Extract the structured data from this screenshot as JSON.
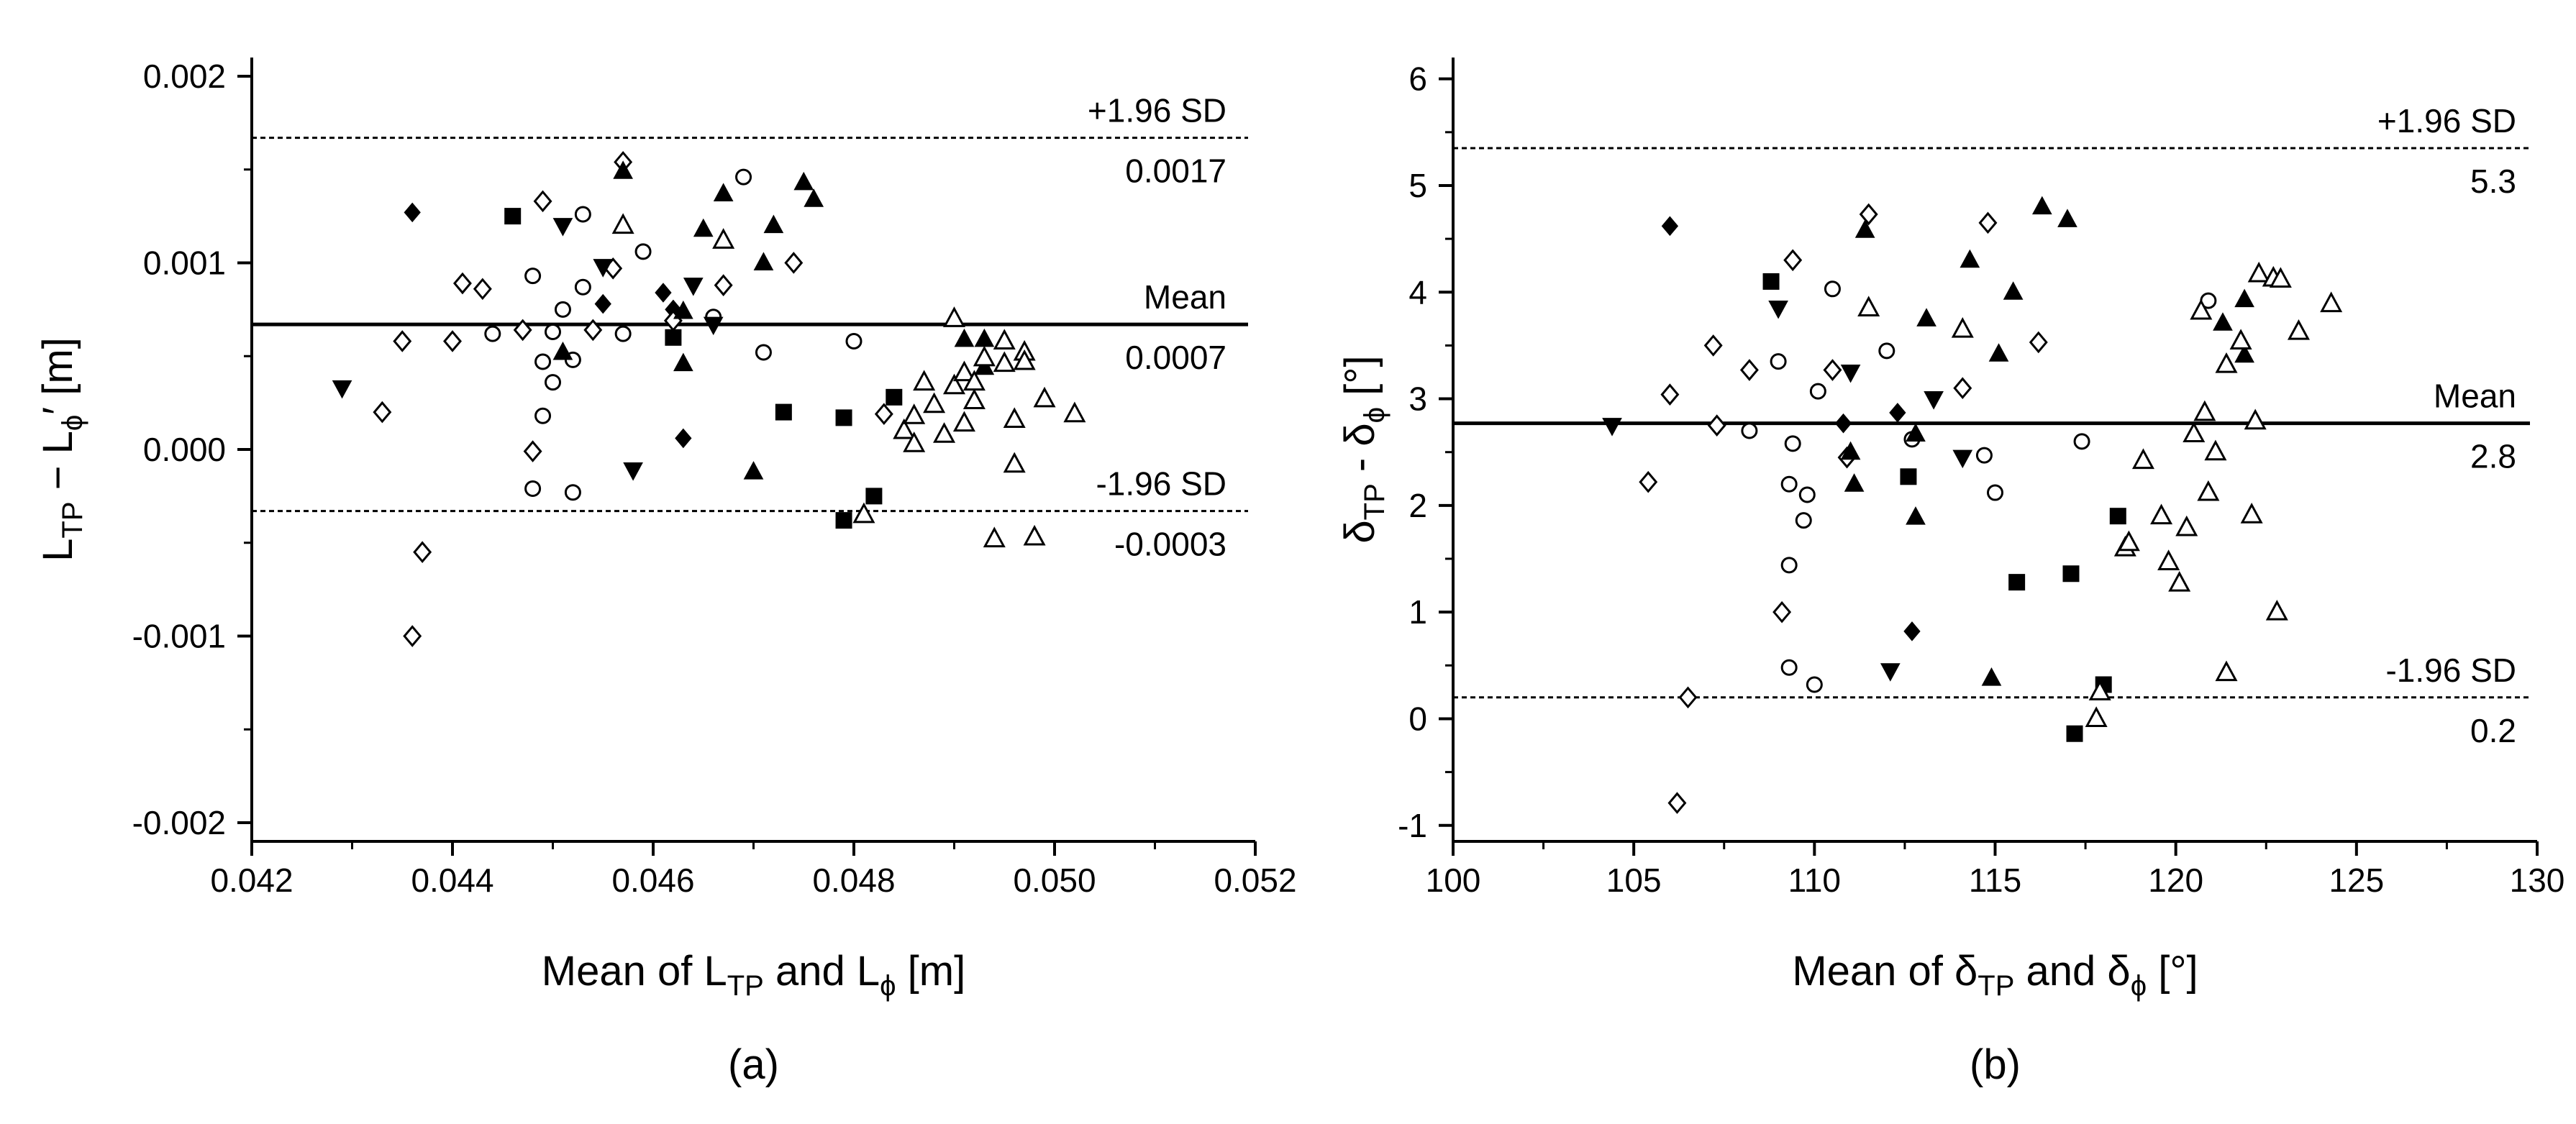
{
  "chart_data": [
    {
      "type": "scatter",
      "panel": "a",
      "caption": "(a)",
      "xlabel": {
        "main": "Mean of L",
        "sub1": "TP",
        "mid": " and L",
        "sub2": "ϕ",
        "unit": " [m]"
      },
      "ylabel": {
        "main": "L",
        "sub1": "TP",
        "mid": " − L",
        "sub2": "ϕ",
        "unit": "′ [m]"
      },
      "xlim": [
        0.042,
        0.052
      ],
      "ylim": [
        -0.0021,
        0.0021
      ],
      "xticks": [
        0.042,
        0.044,
        0.046,
        0.048,
        0.05,
        0.052
      ],
      "xtick_labels": [
        "0.042",
        "0.044",
        "0.046",
        "0.048",
        "0.050",
        "0.052"
      ],
      "yticks": [
        -0.002,
        -0.001,
        0.0,
        0.001,
        0.002
      ],
      "ytick_labels": [
        "-0.002",
        "-0.001",
        "0.000",
        "0.001",
        "0.002"
      ],
      "reference_lines": [
        {
          "name": "upper-limit",
          "value": 0.00167,
          "style": "dashed",
          "label_top": "+1.96 SD",
          "label_bottom": "0.0017"
        },
        {
          "name": "mean",
          "value": 0.00067,
          "style": "solid",
          "label_top": "Mean",
          "label_bottom": "0.0007"
        },
        {
          "name": "lower-limit",
          "value": -0.00033,
          "style": "dashed",
          "label_top": "-1.96 SD",
          "label_bottom": "-0.0003"
        }
      ],
      "series": [
        {
          "name": "filled-diamond",
          "marker": "diamond",
          "filled": true,
          "points": [
            [
              0.0436,
              0.00127
            ],
            [
              0.0455,
              0.00078
            ],
            [
              0.0461,
              0.00084
            ],
            [
              0.0462,
              0.00075
            ],
            [
              0.0463,
              6e-05
            ]
          ]
        },
        {
          "name": "open-diamond",
          "marker": "diamond",
          "filled": false,
          "points": [
            [
              0.0433,
              0.0002
            ],
            [
              0.0435,
              0.00058
            ],
            [
              0.0437,
              -0.00055
            ],
            [
              0.0436,
              -0.001
            ],
            [
              0.0441,
              0.00089
            ],
            [
              0.044,
              0.00058
            ],
            [
              0.0443,
              0.00086
            ],
            [
              0.0447,
              0.00064
            ],
            [
              0.0448,
              -1e-05
            ],
            [
              0.0449,
              0.00133
            ],
            [
              0.0454,
              0.00064
            ],
            [
              0.0456,
              0.00097
            ],
            [
              0.0457,
              0.00154
            ],
            [
              0.0467,
              0.00088
            ],
            [
              0.0474,
              0.001
            ],
            [
              0.0483,
              0.00019
            ],
            [
              0.0462,
              0.00069
            ]
          ]
        },
        {
          "name": "open-circle",
          "marker": "circle",
          "filled": false,
          "points": [
            [
              0.0444,
              0.00062
            ],
            [
              0.0448,
              0.00093
            ],
            [
              0.0449,
              0.00047
            ],
            [
              0.0449,
              0.00018
            ],
            [
              0.0448,
              -0.00021
            ],
            [
              0.045,
              0.00063
            ],
            [
              0.045,
              0.00036
            ],
            [
              0.0451,
              0.00075
            ],
            [
              0.0452,
              0.00048
            ],
            [
              0.0452,
              -0.00023
            ],
            [
              0.0453,
              0.00087
            ],
            [
              0.0453,
              0.00126
            ],
            [
              0.0457,
              0.00062
            ],
            [
              0.0459,
              0.00106
            ],
            [
              0.0466,
              0.00071
            ],
            [
              0.0469,
              0.00146
            ],
            [
              0.0471,
              0.00052
            ],
            [
              0.048,
              0.00058
            ]
          ]
        },
        {
          "name": "filled-triangle-down",
          "marker": "triangle-down",
          "filled": true,
          "points": [
            [
              0.0429,
              0.00033
            ],
            [
              0.0451,
              0.0012
            ],
            [
              0.0455,
              0.00098
            ],
            [
              0.0458,
              -0.00011
            ],
            [
              0.0464,
              0.00088
            ],
            [
              0.0466,
              0.00067
            ]
          ]
        },
        {
          "name": "filled-triangle-up",
          "marker": "triangle-up",
          "filled": true,
          "points": [
            [
              0.0451,
              0.00052
            ],
            [
              0.0457,
              0.00149
            ],
            [
              0.0463,
              0.00074
            ],
            [
              0.0463,
              0.00046
            ],
            [
              0.0465,
              0.00118
            ],
            [
              0.0467,
              0.00137
            ],
            [
              0.047,
              -0.00012
            ],
            [
              0.0471,
              0.001
            ],
            [
              0.0472,
              0.0012
            ],
            [
              0.0475,
              0.00143
            ],
            [
              0.0476,
              0.00134
            ],
            [
              0.0491,
              0.00059
            ],
            [
              0.0493,
              0.00059
            ],
            [
              0.0493,
              0.00044
            ]
          ]
        },
        {
          "name": "filled-square",
          "marker": "square",
          "filled": true,
          "points": [
            [
              0.0446,
              0.00125
            ],
            [
              0.0462,
              0.0006
            ],
            [
              0.0473,
              0.0002
            ],
            [
              0.0479,
              0.00017
            ],
            [
              0.0479,
              -0.00038
            ],
            [
              0.0482,
              -0.00025
            ],
            [
              0.0484,
              0.00028
            ]
          ]
        },
        {
          "name": "open-triangle-up",
          "marker": "triangle-up",
          "filled": false,
          "points": [
            [
              0.0457,
              0.0012
            ],
            [
              0.0467,
              0.00112
            ],
            [
              0.0481,
              -0.00035
            ],
            [
              0.0485,
              0.0001
            ],
            [
              0.0486,
              0.00018
            ],
            [
              0.0487,
              0.00036
            ],
            [
              0.0486,
              3e-05
            ],
            [
              0.0488,
              0.00024
            ],
            [
              0.0489,
              8e-05
            ],
            [
              0.049,
              0.00034
            ],
            [
              0.049,
              0.0007
            ],
            [
              0.0491,
              0.00014
            ],
            [
              0.0491,
              0.00041
            ],
            [
              0.0492,
              0.00026
            ],
            [
              0.0492,
              0.00036
            ],
            [
              0.0493,
              0.00049
            ],
            [
              0.0494,
              -0.00048
            ],
            [
              0.0495,
              0.00046
            ],
            [
              0.0495,
              0.00058
            ],
            [
              0.0496,
              -8e-05
            ],
            [
              0.0496,
              0.00016
            ],
            [
              0.0497,
              0.00052
            ],
            [
              0.0497,
              0.00047
            ],
            [
              0.0498,
              -0.00047
            ],
            [
              0.0499,
              0.00027
            ],
            [
              0.0502,
              0.00019
            ]
          ]
        }
      ]
    },
    {
      "type": "scatter",
      "panel": "b",
      "caption": "(b)",
      "xlabel": {
        "main": "Mean of δ",
        "sub1": "TP",
        "mid": " and δ",
        "sub2": "ϕ",
        "unit": " [°]"
      },
      "ylabel": {
        "main": "δ",
        "sub1": "TP",
        "mid": " - δ",
        "sub2": "ϕ",
        "unit": " [°]"
      },
      "xlim": [
        100,
        130
      ],
      "ylim": [
        -1.15,
        6.2
      ],
      "xticks": [
        100,
        105,
        110,
        115,
        120,
        125,
        130
      ],
      "xtick_labels": [
        "100",
        "105",
        "110",
        "115",
        "120",
        "125",
        "130"
      ],
      "yticks": [
        -1,
        0,
        1,
        2,
        3,
        4,
        5,
        6
      ],
      "ytick_labels": [
        "-1",
        "0",
        "1",
        "2",
        "3",
        "4",
        "5",
        "6"
      ],
      "reference_lines": [
        {
          "name": "upper-limit",
          "value": 5.35,
          "style": "dashed",
          "label_top": "+1.96 SD",
          "label_bottom": "5.3"
        },
        {
          "name": "mean",
          "value": 2.77,
          "style": "solid",
          "label_top": "Mean",
          "label_bottom": "2.8"
        },
        {
          "name": "lower-limit",
          "value": 0.2,
          "style": "dashed",
          "label_top": "-1.96 SD",
          "label_bottom": "0.2"
        }
      ],
      "series": [
        {
          "name": "filled-diamond",
          "marker": "diamond",
          "filled": true,
          "points": [
            [
              106.0,
              4.62
            ],
            [
              110.8,
              2.77
            ],
            [
              112.3,
              2.87
            ],
            [
              112.7,
              0.82
            ]
          ]
        },
        {
          "name": "open-diamond",
          "marker": "diamond",
          "filled": false,
          "points": [
            [
              105.4,
              2.22
            ],
            [
              106.0,
              3.04
            ],
            [
              106.5,
              0.2
            ],
            [
              106.2,
              -0.79
            ],
            [
              107.2,
              3.5
            ],
            [
              107.3,
              2.75
            ],
            [
              108.2,
              3.27
            ],
            [
              109.1,
              1.0
            ],
            [
              109.4,
              4.3
            ],
            [
              110.5,
              3.27
            ],
            [
              110.9,
              2.45
            ],
            [
              111.5,
              4.73
            ],
            [
              114.1,
              3.1
            ],
            [
              114.8,
              4.65
            ],
            [
              116.2,
              3.53
            ]
          ]
        },
        {
          "name": "open-circle",
          "marker": "circle",
          "filled": false,
          "points": [
            [
              108.2,
              2.7
            ],
            [
              109.0,
              3.35
            ],
            [
              109.3,
              2.2
            ],
            [
              109.3,
              1.44
            ],
            [
              109.3,
              0.48
            ],
            [
              109.4,
              2.58
            ],
            [
              109.7,
              1.86
            ],
            [
              109.8,
              2.1
            ],
            [
              110.0,
              0.32
            ],
            [
              110.1,
              3.07
            ],
            [
              110.5,
              4.03
            ],
            [
              112.0,
              3.45
            ],
            [
              112.7,
              2.62
            ],
            [
              114.7,
              2.47
            ],
            [
              115.0,
              2.12
            ],
            [
              117.4,
              2.6
            ],
            [
              120.9,
              3.92
            ]
          ]
        },
        {
          "name": "filled-triangle-down",
          "marker": "triangle-down",
          "filled": true,
          "points": [
            [
              104.4,
              2.75
            ],
            [
              109.0,
              3.85
            ],
            [
              111.0,
              3.25
            ],
            [
              112.1,
              0.45
            ],
            [
              113.3,
              3.0
            ],
            [
              114.1,
              2.45
            ]
          ]
        },
        {
          "name": "filled-triangle-up",
          "marker": "triangle-up",
          "filled": true,
          "points": [
            [
              111.0,
              2.5
            ],
            [
              111.1,
              2.2
            ],
            [
              111.4,
              4.58
            ],
            [
              112.8,
              1.89
            ],
            [
              112.8,
              2.67
            ],
            [
              113.1,
              3.75
            ],
            [
              114.3,
              4.3
            ],
            [
              114.9,
              0.38
            ],
            [
              115.1,
              3.42
            ],
            [
              115.5,
              4.0
            ],
            [
              116.3,
              4.8
            ],
            [
              117.0,
              4.68
            ],
            [
              121.3,
              3.71
            ],
            [
              121.9,
              3.41
            ],
            [
              121.9,
              3.93
            ]
          ]
        },
        {
          "name": "filled-square",
          "marker": "square",
          "filled": true,
          "points": [
            [
              108.8,
              4.1
            ],
            [
              112.6,
              2.27
            ],
            [
              115.6,
              1.28
            ],
            [
              117.1,
              1.36
            ],
            [
              117.2,
              -0.14
            ],
            [
              118.0,
              0.32
            ],
            [
              118.4,
              1.9
            ]
          ]
        },
        {
          "name": "open-triangle-up",
          "marker": "triangle-up",
          "filled": false,
          "points": [
            [
              111.5,
              3.85
            ],
            [
              114.1,
              3.65
            ],
            [
              117.9,
              0.25
            ],
            [
              117.8,
              0.0
            ],
            [
              118.6,
              1.6
            ],
            [
              118.7,
              1.65
            ],
            [
              119.1,
              2.42
            ],
            [
              119.6,
              1.9
            ],
            [
              119.8,
              1.47
            ],
            [
              120.1,
              1.27
            ],
            [
              120.3,
              1.79
            ],
            [
              120.5,
              2.67
            ],
            [
              120.7,
              3.82
            ],
            [
              120.8,
              2.87
            ],
            [
              120.9,
              2.12
            ],
            [
              121.1,
              2.5
            ],
            [
              121.4,
              3.32
            ],
            [
              121.4,
              0.43
            ],
            [
              121.8,
              3.54
            ],
            [
              122.1,
              1.91
            ],
            [
              122.2,
              2.79
            ],
            [
              122.3,
              4.17
            ],
            [
              122.7,
              4.13
            ],
            [
              122.8,
              1.0
            ],
            [
              122.9,
              4.12
            ],
            [
              123.4,
              3.63
            ],
            [
              124.3,
              3.89
            ]
          ]
        }
      ]
    }
  ]
}
